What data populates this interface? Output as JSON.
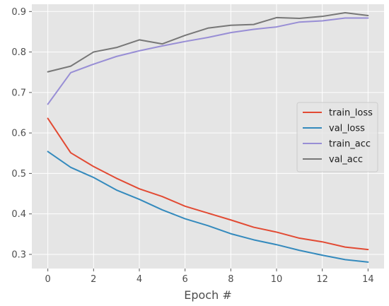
{
  "chart_data": {
    "type": "line",
    "title": "",
    "xlabel": "Epoch #",
    "ylabel": "",
    "x": [
      0,
      1,
      2,
      3,
      4,
      5,
      6,
      7,
      8,
      9,
      10,
      11,
      12,
      13,
      14
    ],
    "xlim": [
      -0.7,
      14.7
    ],
    "ylim": [
      0.265,
      0.918
    ],
    "xticks": [
      0,
      2,
      4,
      6,
      8,
      10,
      12,
      14
    ],
    "yticks": [
      0.3,
      0.4,
      0.5,
      0.6,
      0.7,
      0.8,
      0.9
    ],
    "grid": true,
    "legend_position": "center-right",
    "series": [
      {
        "name": "train_loss",
        "color": "#e24a33",
        "values": [
          0.636,
          0.551,
          0.517,
          0.488,
          0.462,
          0.443,
          0.419,
          0.402,
          0.385,
          0.367,
          0.355,
          0.34,
          0.331,
          0.318,
          0.312
        ]
      },
      {
        "name": "val_loss",
        "color": "#348abd",
        "values": [
          0.554,
          0.515,
          0.49,
          0.459,
          0.436,
          0.41,
          0.388,
          0.371,
          0.351,
          0.336,
          0.324,
          0.31,
          0.298,
          0.287,
          0.281
        ]
      },
      {
        "name": "train_acc",
        "color": "#988ed5",
        "values": [
          0.671,
          0.749,
          0.77,
          0.789,
          0.803,
          0.815,
          0.826,
          0.836,
          0.848,
          0.856,
          0.862,
          0.874,
          0.877,
          0.884,
          0.884
        ]
      },
      {
        "name": "val_acc",
        "color": "#777777",
        "values": [
          0.751,
          0.765,
          0.8,
          0.811,
          0.83,
          0.82,
          0.841,
          0.859,
          0.866,
          0.868,
          0.885,
          0.883,
          0.888,
          0.897,
          0.89
        ]
      }
    ]
  }
}
